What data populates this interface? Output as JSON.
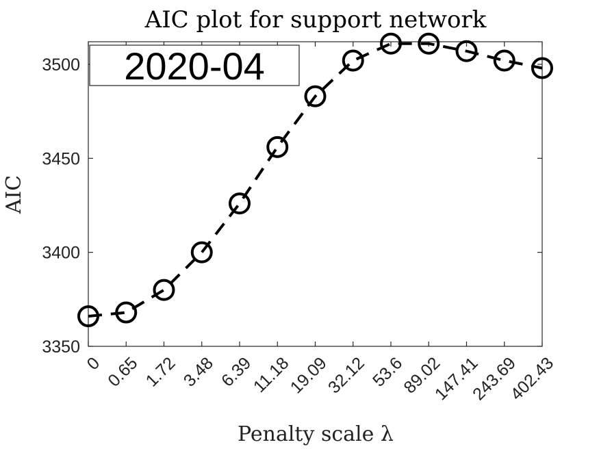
{
  "chart_data": {
    "type": "line",
    "title": "AIC plot for support network",
    "xlabel": "Penalty scale λ",
    "ylabel": "AIC",
    "categories": [
      "0",
      "0.65",
      "1.72",
      "3.48",
      "6.39",
      "11.18",
      "19.09",
      "32.12",
      "53.6",
      "89.02",
      "147.41",
      "243.69",
      "402.43"
    ],
    "series": [
      {
        "name": "AIC",
        "values": [
          3366,
          3368,
          3380,
          3400,
          3426,
          3456,
          3483,
          3502,
          3511,
          3511,
          3507,
          3502,
          3498
        ]
      }
    ],
    "ylim": [
      3350,
      3512
    ],
    "yticks": [
      3350,
      3400,
      3450,
      3500
    ],
    "grid": false,
    "line_style": "dashed",
    "marker": "circle",
    "color": "#000000",
    "annotation": "2020-04"
  }
}
